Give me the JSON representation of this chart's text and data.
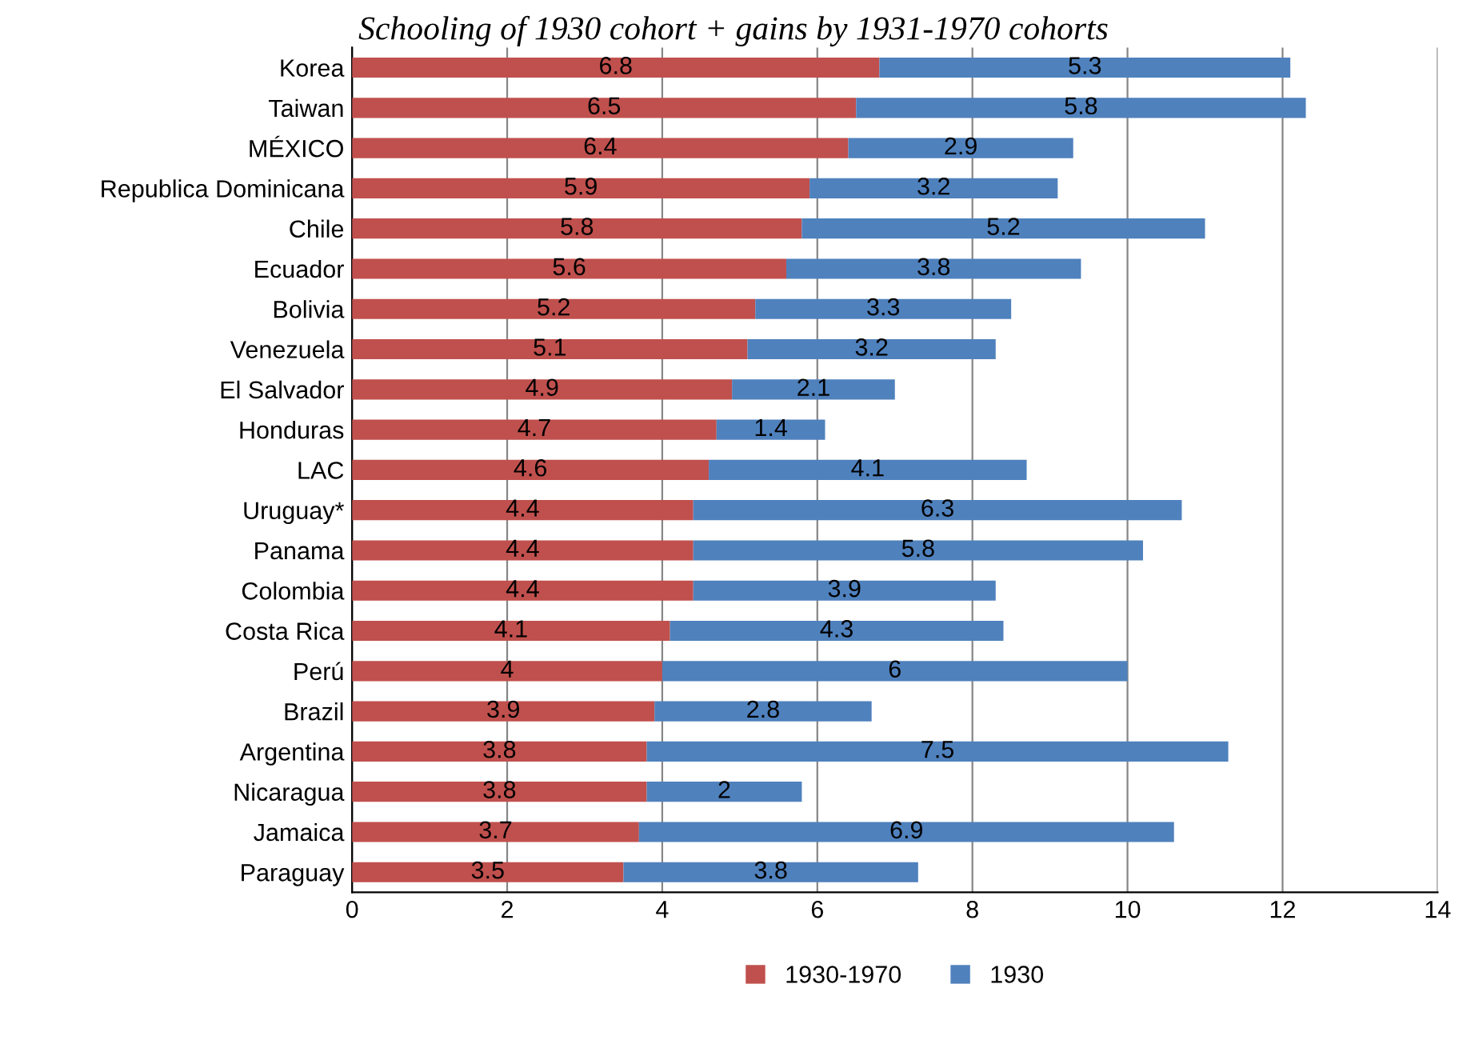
{
  "chart_data": {
    "type": "bar",
    "orientation": "horizontal",
    "stacked": true,
    "title": "Schooling of 1930 cohort + gains by 1931-1970 cohorts",
    "categories": [
      "Korea",
      "Taiwan",
      "MÉXICO",
      "Republica Dominicana",
      "Chile",
      "Ecuador",
      "Bolivia",
      "Venezuela",
      "El Salvador",
      "Honduras",
      "LAC",
      "Uruguay*",
      "Panama",
      "Colombia",
      "Costa Rica",
      "Perú",
      "Brazil",
      "Argentina",
      "Nicaragua",
      "Jamaica",
      "Paraguay"
    ],
    "series": [
      {
        "name": "1930-1970",
        "color": "#c0504d",
        "values": [
          6.8,
          6.5,
          6.4,
          5.9,
          5.8,
          5.6,
          5.2,
          5.1,
          4.9,
          4.7,
          4.6,
          4.4,
          4.4,
          4.4,
          4.1,
          4,
          3.9,
          3.8,
          3.8,
          3.7,
          3.5
        ]
      },
      {
        "name": "1930",
        "color": "#4f81bd",
        "values": [
          5.3,
          5.8,
          2.9,
          3.2,
          5.2,
          3.8,
          3.3,
          3.2,
          2.1,
          1.4,
          4.1,
          6.3,
          5.8,
          3.9,
          4.3,
          6,
          2.8,
          7.5,
          2,
          6.9,
          3.8
        ]
      }
    ],
    "xlim": [
      0,
      14
    ],
    "xticks": [
      0,
      2,
      4,
      6,
      8,
      10,
      12,
      14
    ],
    "grid": "x",
    "legend": "bottom",
    "data_labels": true
  }
}
